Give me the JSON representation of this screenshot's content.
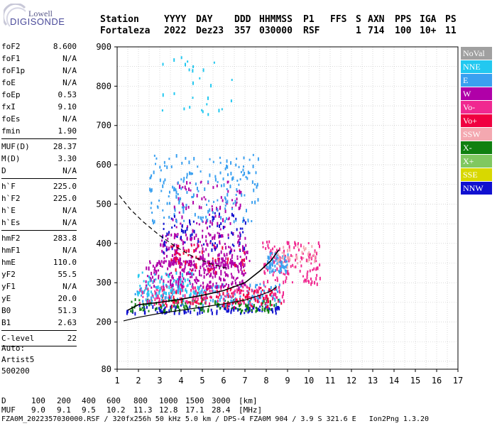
{
  "logo": {
    "line1": "Lowell",
    "line2": "DIGISONDE"
  },
  "header": {
    "row1": [
      "Station",
      "YYYY",
      "DAY",
      "DDD",
      "HHMMSS",
      "P1",
      "FFS",
      "S",
      "AXN",
      "PPS",
      "IGA",
      "PS"
    ],
    "row2": [
      "Fortaleza",
      "2022",
      "Dez23",
      "357",
      "030000",
      "RSF",
      "1",
      "714",
      "100",
      "10+",
      "11"
    ]
  },
  "params": [
    {
      "label": "foF2",
      "value": "8.600"
    },
    {
      "label": "foF1",
      "value": "N/A"
    },
    {
      "label": "foF1p",
      "value": "N/A"
    },
    {
      "label": "foE",
      "value": "N/A"
    },
    {
      "label": "foEp",
      "value": "0.53"
    },
    {
      "label": "fxI",
      "value": "9.10"
    },
    {
      "label": "foEs",
      "value": "N/A"
    },
    {
      "label": "fmin",
      "value": "1.90"
    },
    {
      "sep": true
    },
    {
      "label": "MUF(D)",
      "value": "28.37"
    },
    {
      "label": "M(D)",
      "value": "3.30"
    },
    {
      "label": "D",
      "value": "N/A"
    },
    {
      "sep": true
    },
    {
      "label": "h`F",
      "value": "225.0"
    },
    {
      "label": "h`F2",
      "value": "225.0"
    },
    {
      "label": "h`E",
      "value": "N/A"
    },
    {
      "label": "h`Es",
      "value": "N/A"
    },
    {
      "sep": true
    },
    {
      "label": "hmF2",
      "value": "283.8"
    },
    {
      "label": "hmF1",
      "value": "N/A"
    },
    {
      "label": "hmE",
      "value": "110.0"
    },
    {
      "label": "yF2",
      "value": "55.5"
    },
    {
      "label": "yF1",
      "value": "N/A"
    },
    {
      "label": "yE",
      "value": "20.0"
    },
    {
      "label": "B0",
      "value": "51.3"
    },
    {
      "label": "B1",
      "value": "2.63"
    },
    {
      "sep": true
    },
    {
      "label": "C-level",
      "value": "22"
    },
    {
      "sep": true
    }
  ],
  "auto": {
    "line1": "Auto:",
    "line2": "Artist5",
    "line3": "500200"
  },
  "legend": [
    {
      "label": "NoVal",
      "color": "#a0a0a0"
    },
    {
      "label": "NNE",
      "color": "#22c8f0"
    },
    {
      "label": "E",
      "color": "#3aa0f0"
    },
    {
      "label": "W",
      "color": "#b000a8"
    },
    {
      "label": "Vo-",
      "color": "#f02890"
    },
    {
      "label": "Vo+",
      "color": "#f00040"
    },
    {
      "label": "SSW",
      "color": "#f4a8b0"
    },
    {
      "label": "X-",
      "color": "#108010"
    },
    {
      "label": "X+",
      "color": "#80c860"
    },
    {
      "label": "SSE",
      "color": "#d8d800"
    },
    {
      "label": "NNW",
      "color": "#1010d0"
    }
  ],
  "chart_data": {
    "type": "scatter",
    "xlim": [
      1,
      17
    ],
    "ylim": [
      80,
      900
    ],
    "xticks": [
      1,
      2,
      3,
      4,
      5,
      6,
      7,
      8,
      9,
      10,
      11,
      12,
      13,
      14,
      15,
      16,
      17
    ],
    "yticks": [
      80,
      200,
      300,
      400,
      500,
      600,
      700,
      800,
      900
    ],
    "grid": true,
    "legend_position": "right",
    "profile_solid": [
      [
        1.5,
        230
      ],
      [
        2.0,
        244
      ],
      [
        3.0,
        250
      ],
      [
        4.0,
        258
      ],
      [
        5.0,
        268
      ],
      [
        6.0,
        280
      ],
      [
        7.0,
        300
      ],
      [
        7.7,
        330
      ],
      [
        8.2,
        355
      ],
      [
        8.6,
        384
      ]
    ],
    "profile_lower": [
      [
        1.3,
        203
      ],
      [
        2.0,
        212
      ],
      [
        3.0,
        222
      ],
      [
        4.0,
        230
      ],
      [
        5.0,
        238
      ],
      [
        6.0,
        246
      ],
      [
        7.0,
        256
      ],
      [
        7.7,
        268
      ],
      [
        8.2,
        278
      ],
      [
        8.5,
        290
      ]
    ],
    "profile_dashed": [
      [
        1.1,
        522
      ],
      [
        1.6,
        488
      ],
      [
        2.2,
        456
      ],
      [
        3.0,
        420
      ],
      [
        3.8,
        390
      ],
      [
        4.6,
        365
      ],
      [
        5.4,
        348
      ],
      [
        6.2,
        336
      ]
    ],
    "trace_clusters": [
      {
        "series": "NNW",
        "x": [
          1.4,
          8.6
        ],
        "y": [
          225,
          245
        ],
        "n": 120
      },
      {
        "series": "X-",
        "x": [
          1.6,
          8.6
        ],
        "y": [
          230,
          262
        ],
        "n": 150
      },
      {
        "series": "E",
        "x": [
          1.8,
          8.8
        ],
        "y": [
          245,
          300
        ],
        "n": 160
      },
      {
        "series": "Vo-",
        "x": [
          2.0,
          8.8
        ],
        "y": [
          250,
          295
        ],
        "n": 160
      },
      {
        "series": "Vo+",
        "x": [
          3.0,
          8.8
        ],
        "y": [
          240,
          290
        ],
        "n": 100
      },
      {
        "series": "W",
        "x": [
          2.3,
          7.0
        ],
        "y": [
          290,
          360
        ],
        "n": 260
      },
      {
        "series": "W",
        "x": [
          3.0,
          7.2
        ],
        "y": [
          340,
          430
        ],
        "n": 180
      },
      {
        "series": "W",
        "x": [
          3.5,
          6.8
        ],
        "y": [
          420,
          560
        ],
        "n": 90
      },
      {
        "series": "NNE",
        "x": [
          1.8,
          5.0
        ],
        "y": [
          270,
          330
        ],
        "n": 80
      },
      {
        "series": "E",
        "x": [
          2.5,
          7.6
        ],
        "y": [
          455,
          630
        ],
        "n": 180
      },
      {
        "series": "NNE",
        "x": [
          3.0,
          6.5
        ],
        "y": [
          730,
          880
        ],
        "n": 28
      },
      {
        "series": "Vo-",
        "x": [
          7.8,
          10.5
        ],
        "y": [
          300,
          410
        ],
        "n": 120
      },
      {
        "series": "E",
        "x": [
          8.0,
          9.0
        ],
        "y": [
          330,
          380
        ],
        "n": 60
      },
      {
        "series": "SSW",
        "x": [
          8.5,
          10.3
        ],
        "y": [
          340,
          400
        ],
        "n": 40
      },
      {
        "series": "NNW",
        "x": [
          3.0,
          7.0
        ],
        "y": [
          380,
          480
        ],
        "n": 70
      },
      {
        "series": "Vo+",
        "x": [
          3.5,
          7.0
        ],
        "y": [
          330,
          400
        ],
        "n": 60
      }
    ]
  },
  "xaxis_labels": [
    "1",
    "2",
    "3",
    "4",
    "5",
    "6",
    "7",
    "8",
    "9",
    "10",
    "11",
    "12",
    "13",
    "14",
    "15",
    "16",
    "17"
  ],
  "yaxis_labels": [
    "80",
    "200",
    "300",
    "400",
    "500",
    "600",
    "700",
    "800",
    "900"
  ],
  "bottom": {
    "d_label": "D",
    "d_values": [
      "100",
      "200",
      "400",
      "600",
      "800",
      "1000",
      "1500",
      "3000",
      "[km]"
    ],
    "muf_label": "MUF",
    "muf_values": [
      "9.0",
      "9.1",
      "9.5",
      "10.2",
      "11.3",
      "12.8",
      "17.1",
      "28.4",
      "[MHz]"
    ],
    "footer": "FZA0M_2022357030000.RSF / 320fx256h 50 kHz 5.0 km / DPS-4 FZA0M 904 / 3.9 S 321.6 E   Ion2Png 1.3.20"
  }
}
